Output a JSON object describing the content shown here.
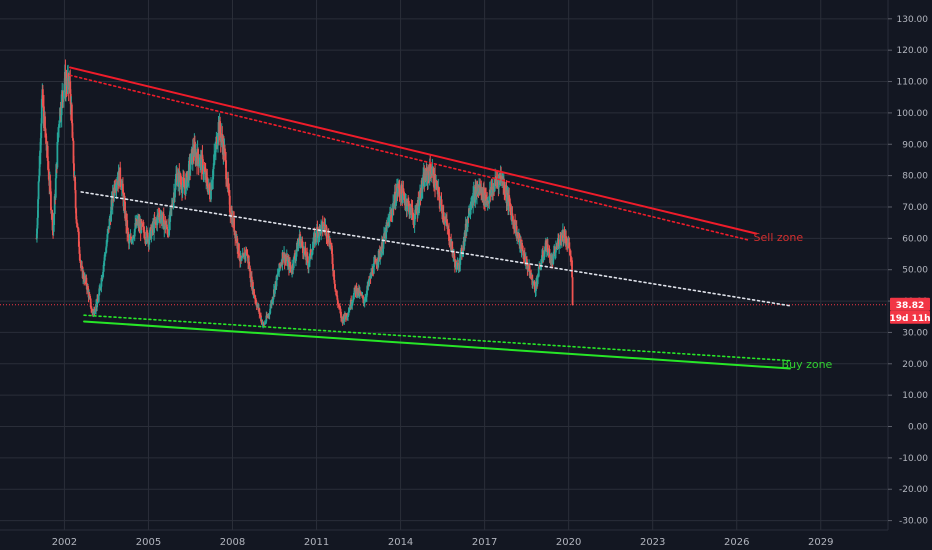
{
  "chart_data": {
    "type": "candlestick",
    "yticks": [
      "130.00",
      "120.00",
      "110.00",
      "100.00",
      "90.00",
      "80.00",
      "70.00",
      "60.00",
      "50.00",
      "40.00",
      "30.00",
      "20.00",
      "10.00",
      "0.00",
      "-10.00",
      "-20.00",
      "-30.00"
    ],
    "xticks": [
      "2002",
      "2005",
      "2008",
      "2011",
      "2014",
      "2017",
      "2020",
      "2023",
      "2026",
      "2029"
    ],
    "ylim": [
      -33,
      136
    ],
    "xlim": [
      1999.7,
      2031.4
    ],
    "last_price": {
      "label": "38.82",
      "value": 38.82,
      "color": "#f23645"
    },
    "countdown": {
      "label": "19d 11h"
    },
    "colors": {
      "background": "#131722",
      "grid": "#2a2e39",
      "up": "#26a69a",
      "down": "#ef5350",
      "resistance": "#ef1c2a",
      "support": "#27e627",
      "midline": "#e0e3eb"
    },
    "annotations": {
      "sell_zone": {
        "label": "Sell zone",
        "x": 2026.6,
        "y": 60.5,
        "color": "#d32f2f"
      },
      "buy_zone": {
        "label": "Buy zone",
        "x": 2027.6,
        "y": 20.0,
        "color": "#31d131"
      }
    },
    "trendlines": [
      {
        "name": "resistance",
        "style": "solid",
        "x1": 2002.2,
        "y1": 114.5,
        "x2": 2026.7,
        "y2": 61.5
      },
      {
        "name": "resistance-dotted",
        "style": "dotted",
        "x1": 2002.2,
        "y1": 112.0,
        "x2": 2026.4,
        "y2": 59.5
      },
      {
        "name": "support",
        "style": "solid",
        "x1": 2002.7,
        "y1": 33.5,
        "x2": 2027.9,
        "y2": 18.5
      },
      {
        "name": "support-dotted",
        "style": "dotted",
        "x1": 2002.7,
        "y1": 35.5,
        "x2": 2027.9,
        "y2": 21.0
      },
      {
        "name": "midline",
        "style": "dotted",
        "x1": 2002.6,
        "y1": 74.8,
        "x2": 2027.9,
        "y2": 38.5
      }
    ],
    "price_anchors": [
      [
        2001.0,
        60
      ],
      [
        2001.2,
        105
      ],
      [
        2001.4,
        85
      ],
      [
        2001.6,
        62
      ],
      [
        2001.8,
        98
      ],
      [
        2002.0,
        110
      ],
      [
        2002.2,
        108
      ],
      [
        2002.4,
        70
      ],
      [
        2002.6,
        50
      ],
      [
        2002.8,
        45
      ],
      [
        2003.0,
        36
      ],
      [
        2003.2,
        40
      ],
      [
        2003.5,
        58
      ],
      [
        2003.8,
        78
      ],
      [
        2004.0,
        80
      ],
      [
        2004.3,
        58
      ],
      [
        2004.6,
        65
      ],
      [
        2005.0,
        60
      ],
      [
        2005.4,
        68
      ],
      [
        2005.7,
        62
      ],
      [
        2006.0,
        80
      ],
      [
        2006.3,
        76
      ],
      [
        2006.6,
        88
      ],
      [
        2006.9,
        84
      ],
      [
        2007.2,
        74
      ],
      [
        2007.5,
        96
      ],
      [
        2007.7,
        88
      ],
      [
        2007.9,
        70
      ],
      [
        2008.1,
        62
      ],
      [
        2008.3,
        52
      ],
      [
        2008.5,
        56
      ],
      [
        2008.7,
        45
      ],
      [
        2008.9,
        38
      ],
      [
        2009.1,
        32
      ],
      [
        2009.3,
        36
      ],
      [
        2009.5,
        44
      ],
      [
        2009.8,
        55
      ],
      [
        2010.1,
        50
      ],
      [
        2010.4,
        60
      ],
      [
        2010.7,
        52
      ],
      [
        2011.0,
        62
      ],
      [
        2011.3,
        64
      ],
      [
        2011.5,
        58
      ],
      [
        2011.7,
        42
      ],
      [
        2011.9,
        34
      ],
      [
        2012.1,
        36
      ],
      [
        2012.4,
        44
      ],
      [
        2012.7,
        40
      ],
      [
        2013.0,
        50
      ],
      [
        2013.3,
        56
      ],
      [
        2013.6,
        66
      ],
      [
        2013.9,
        76
      ],
      [
        2014.2,
        72
      ],
      [
        2014.5,
        66
      ],
      [
        2014.8,
        78
      ],
      [
        2015.1,
        82
      ],
      [
        2015.4,
        72
      ],
      [
        2015.7,
        62
      ],
      [
        2016.0,
        50
      ],
      [
        2016.2,
        56
      ],
      [
        2016.5,
        72
      ],
      [
        2016.8,
        76
      ],
      [
        2017.1,
        72
      ],
      [
        2017.4,
        78
      ],
      [
        2017.6,
        80
      ],
      [
        2017.9,
        70
      ],
      [
        2018.2,
        60
      ],
      [
        2018.5,
        52
      ],
      [
        2018.8,
        44
      ],
      [
        2019.0,
        52
      ],
      [
        2019.2,
        58
      ],
      [
        2019.4,
        52
      ],
      [
        2019.6,
        58
      ],
      [
        2019.8,
        62
      ],
      [
        2020.0,
        58
      ],
      [
        2020.1,
        52
      ],
      [
        2020.15,
        38.82
      ]
    ]
  }
}
